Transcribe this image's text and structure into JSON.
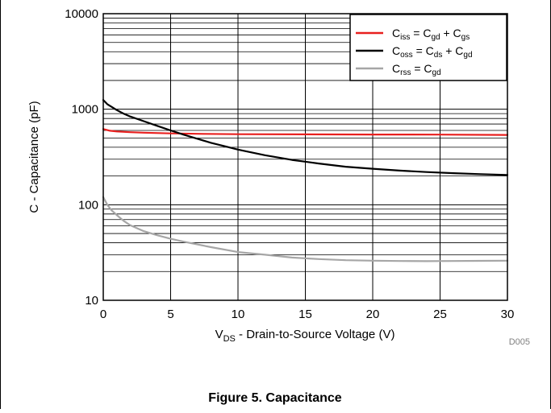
{
  "figure_caption": "Figure 5. Capacitance",
  "chart_data": {
    "type": "line",
    "title": "",
    "ylabel": "C - Capacitance (pF)",
    "xlabel": {
      "prefix": "V",
      "sub": "DS",
      "rest": " - Drain-to-Source Voltage (V)"
    },
    "code": "D005",
    "xlim": [
      0,
      30
    ],
    "ylim": [
      10,
      10000
    ],
    "yscale": "log",
    "grid": true,
    "legend_placement": "top-right",
    "x_ticks": [
      {
        "value": 0,
        "label": "0"
      },
      {
        "value": 5,
        "label": "5"
      },
      {
        "value": 10,
        "label": "10"
      },
      {
        "value": 15,
        "label": "15"
      },
      {
        "value": 20,
        "label": "20"
      },
      {
        "value": 25,
        "label": "25"
      },
      {
        "value": 30,
        "label": "30"
      }
    ],
    "y_ticks": [
      {
        "value": 10,
        "label": "10"
      },
      {
        "value": 100,
        "label": "100"
      },
      {
        "value": 1000,
        "label": "1000"
      },
      {
        "value": 10000,
        "label": "10000"
      }
    ],
    "series": [
      {
        "key": "ciss",
        "color": "#e8201f",
        "legend": [
          {
            "t": "C",
            "s": false
          },
          {
            "t": "iss",
            "s": true
          },
          {
            "t": " = C",
            "s": false
          },
          {
            "t": "gd",
            "s": true
          },
          {
            "t": " + C",
            "s": false
          },
          {
            "t": "gs",
            "s": true
          }
        ],
        "x": [
          0,
          0.5,
          1,
          2,
          3,
          5,
          7.5,
          10,
          15,
          20,
          25,
          30
        ],
        "y": [
          620,
          595,
          585,
          575,
          568,
          558,
          552,
          548,
          545,
          543,
          542,
          538
        ]
      },
      {
        "key": "coss",
        "color": "#000000",
        "legend": [
          {
            "t": "C",
            "s": false
          },
          {
            "t": "oss",
            "s": true
          },
          {
            "t": " = C",
            "s": false
          },
          {
            "t": "ds",
            "s": true
          },
          {
            "t": " + C",
            "s": false
          },
          {
            "t": "gd",
            "s": true
          }
        ],
        "x": [
          0,
          0.3,
          0.7,
          1,
          1.5,
          2,
          3,
          4,
          5,
          6,
          7,
          8,
          9,
          10,
          12,
          14,
          16,
          18,
          20,
          22,
          24,
          26,
          28,
          30
        ],
        "y": [
          1250,
          1130,
          1040,
          980,
          900,
          840,
          750,
          670,
          600,
          540,
          490,
          445,
          410,
          378,
          330,
          295,
          270,
          250,
          238,
          228,
          220,
          214,
          209,
          205
        ]
      },
      {
        "key": "crss",
        "color": "#a6a6a6",
        "legend": [
          {
            "t": "C",
            "s": false
          },
          {
            "t": "rss",
            "s": true
          },
          {
            "t": " = C",
            "s": false
          },
          {
            "t": "gd",
            "s": true
          }
        ],
        "x": [
          0,
          0.3,
          0.6,
          1,
          1.5,
          2,
          3,
          4,
          5,
          6,
          8,
          10,
          12,
          14,
          16,
          18,
          20,
          22,
          24,
          26,
          28,
          30
        ],
        "y": [
          120,
          100,
          88,
          78,
          68,
          61,
          53,
          48,
          44,
          41,
          36,
          32,
          30,
          28,
          27,
          26.3,
          26,
          25.8,
          25.7,
          25.8,
          25.9,
          26
        ]
      }
    ]
  }
}
